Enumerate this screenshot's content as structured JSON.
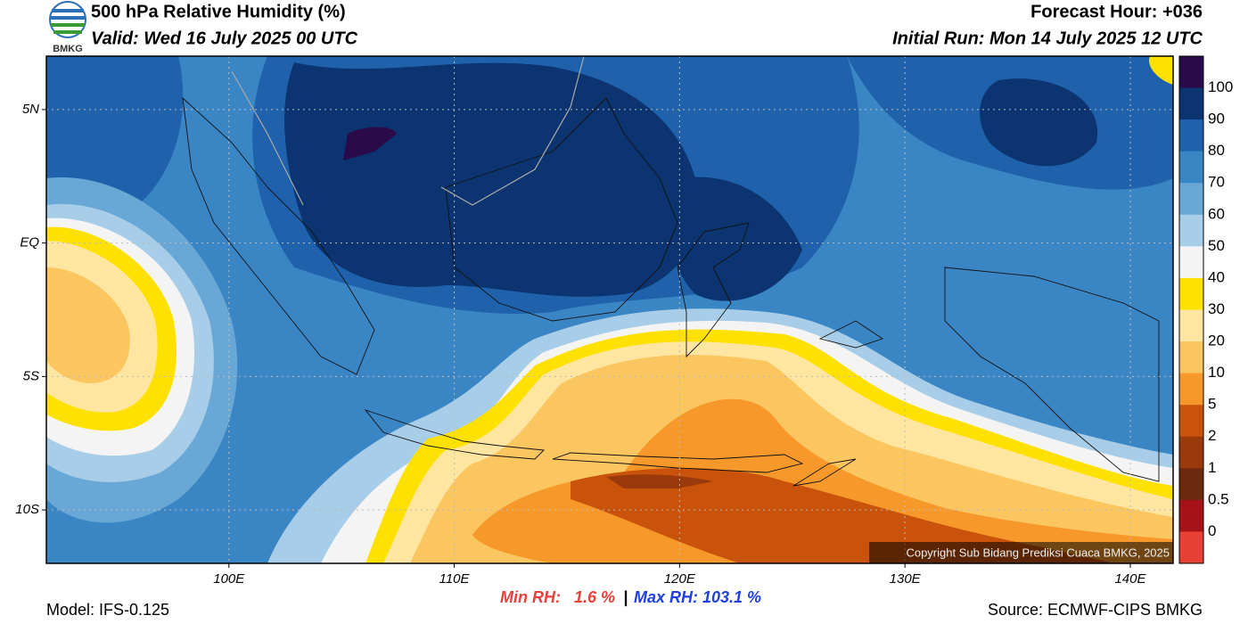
{
  "header": {
    "title": "500 hPa Relative Humidity (%)",
    "valid": "Valid: Wed 16 July 2025 00 UTC",
    "forecast_hour": "Forecast Hour: +036",
    "initial_run": "Initial Run: Mon 14 July 2025 12 UTC",
    "logo_text": "BMKG"
  },
  "map": {
    "latlim": [
      -12,
      7
    ],
    "lonlim": [
      91.9,
      141.9
    ],
    "lat_ticks": [
      {
        "value": 5,
        "label": "5N"
      },
      {
        "value": 0,
        "label": "EQ"
      },
      {
        "value": -5,
        "label": "5S"
      },
      {
        "value": -10,
        "label": "10S"
      }
    ],
    "lon_ticks": [
      {
        "value": 100,
        "label": "100E"
      },
      {
        "value": 110,
        "label": "110E"
      },
      {
        "value": 120,
        "label": "120E"
      },
      {
        "value": 130,
        "label": "130E"
      },
      {
        "value": 140,
        "label": "140E"
      }
    ],
    "copyright": "Copyright Sub Bidang Prediksi Cuaca BMKG, 2025"
  },
  "colorbar": {
    "colors": [
      "#2b0a4a",
      "#0b3470",
      "#1f62ab",
      "#3a86c4",
      "#69a8d6",
      "#a7cde8",
      "#f4f4f4",
      "#ffe100",
      "#ffe6a0",
      "#fbc560",
      "#f7992a",
      "#c9530a",
      "#9a3a0c",
      "#6b2a0e",
      "#a51217",
      "#e84035"
    ],
    "labels": [
      "100",
      "90",
      "80",
      "70",
      "60",
      "50",
      "40",
      "30",
      "20",
      "10",
      "5",
      "2",
      "1",
      "0.5",
      "0"
    ]
  },
  "footer": {
    "min_rh": "Min RH:   1.6 %",
    "separator": "|",
    "max_rh": "Max RH: 103.1 %",
    "model": "Model: IFS-0.125",
    "source": "Source: ECMWF-CIPS BMKG"
  }
}
